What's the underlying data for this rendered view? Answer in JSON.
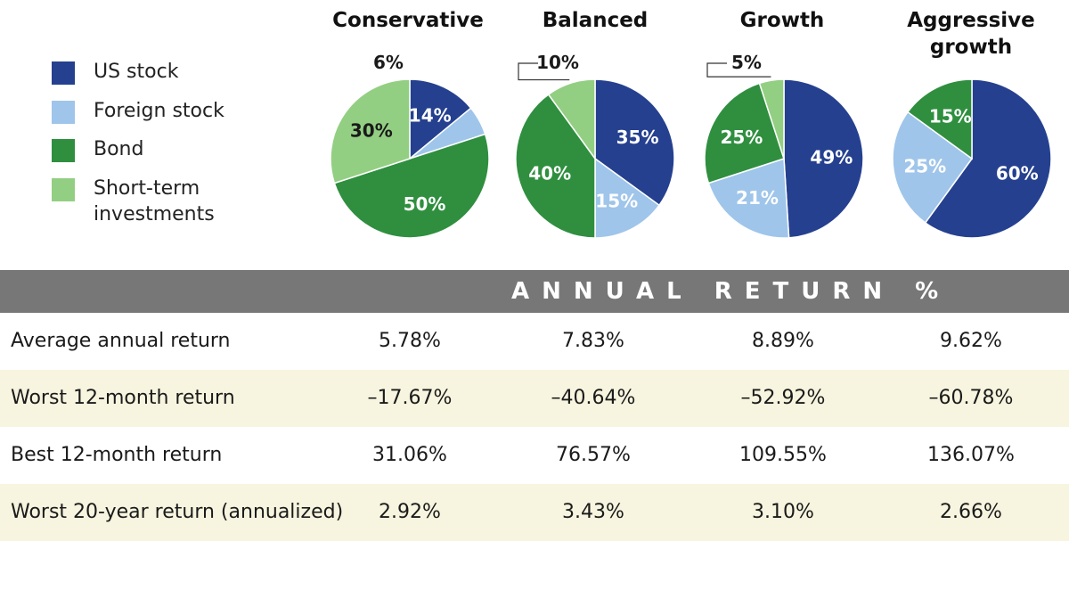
{
  "colors": {
    "us_stock": "#25408f",
    "foreign_stock": "#9fc5ea",
    "bond": "#2f8f3f",
    "short_term": "#93cf82",
    "band": "#777777",
    "row_shade": "#f7f5df"
  },
  "legend": [
    {
      "label": "US stock",
      "color": "#25408f"
    },
    {
      "label": "Foreign stock",
      "color": "#9fc5ea"
    },
    {
      "label": "Bond",
      "color": "#2f8f3f"
    },
    {
      "label": "Short-term\ninvestments",
      "color": "#93cf82"
    }
  ],
  "chart_data": {
    "type": "pie",
    "categories": [
      "US stock",
      "Foreign stock",
      "Bond",
      "Short-term investments"
    ],
    "charts": [
      {
        "title": "Conservative",
        "values": [
          14,
          6,
          50,
          30
        ],
        "labels": [
          "14%",
          "6%",
          "50%",
          "30%"
        ]
      },
      {
        "title": "Balanced",
        "values": [
          35,
          15,
          40,
          10
        ],
        "labels": [
          "35%",
          "15%",
          "40%",
          "10%"
        ]
      },
      {
        "title": "Growth",
        "values": [
          49,
          21,
          25,
          5
        ],
        "labels": [
          "49%",
          "21%",
          "25%",
          "5%"
        ]
      },
      {
        "title": "Aggressive\ngrowth",
        "values": [
          60,
          25,
          15,
          0
        ],
        "labels": [
          "60%",
          "25%",
          "15%",
          ""
        ]
      }
    ]
  },
  "band_label": "ANNUAL RETURN %",
  "table": {
    "rows": [
      {
        "label": "Average annual return",
        "values": [
          "5.78%",
          "7.83%",
          "8.89%",
          "9.62%"
        ]
      },
      {
        "label": "Worst 12-month return",
        "values": [
          "–17.67%",
          "–40.64%",
          "–52.92%",
          "–60.78%"
        ]
      },
      {
        "label": "Best 12-month return",
        "values": [
          "31.06%",
          "76.57%",
          "109.55%",
          "136.07%"
        ]
      },
      {
        "label": "Worst 20-year return (annualized)",
        "values": [
          "2.92%",
          "3.43%",
          "3.10%",
          "2.66%"
        ]
      }
    ]
  }
}
